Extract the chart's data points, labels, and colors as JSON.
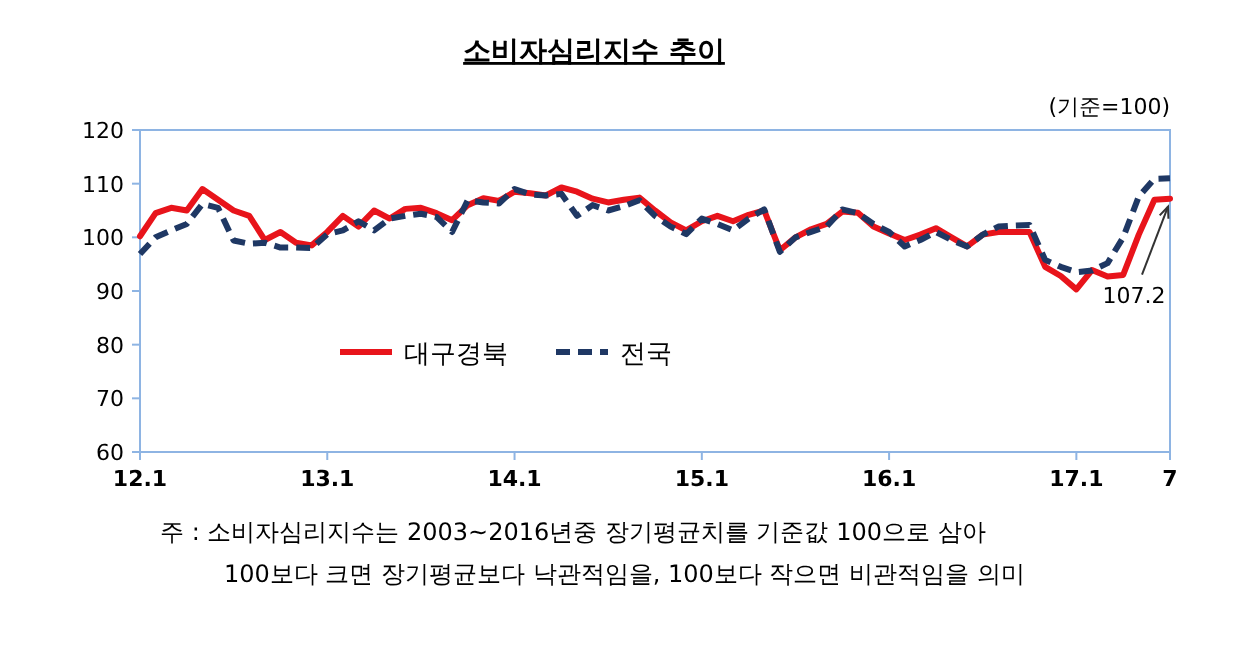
{
  "chart_data": {
    "type": "line",
    "title": "소비자심리지수 추이",
    "categories": [
      "12.1",
      null,
      null,
      null,
      null,
      null,
      null,
      null,
      null,
      null,
      null,
      null,
      "13.1",
      null,
      null,
      null,
      null,
      null,
      null,
      null,
      null,
      null,
      null,
      null,
      "14.1",
      null,
      null,
      null,
      null,
      null,
      null,
      null,
      null,
      null,
      null,
      null,
      "15.1",
      null,
      null,
      null,
      null,
      null,
      null,
      null,
      null,
      null,
      null,
      null,
      "16.1",
      null,
      null,
      null,
      null,
      null,
      null,
      null,
      null,
      null,
      null,
      null,
      "17.1",
      null,
      null,
      null,
      null,
      null,
      "7"
    ],
    "series": [
      {
        "name": "대구경북",
        "color": "#e8141b",
        "line_style": "solid",
        "values": [
          100.2,
          104.5,
          105.5,
          105,
          109,
          107,
          105,
          104,
          99.5,
          101,
          99,
          98.5,
          101,
          104,
          102,
          105,
          103.5,
          105.3,
          105.5,
          104.5,
          103.2,
          106,
          107.3,
          106.8,
          108.5,
          108.2,
          107.8,
          109.3,
          108.5,
          107.2,
          106.5,
          107,
          107.4,
          105,
          102.8,
          101.3,
          103,
          104,
          103,
          104.2,
          105,
          97.6,
          100,
          101.5,
          102.5,
          104.8,
          104.6,
          102,
          100.7,
          99.5,
          100.5,
          101.7,
          100,
          98.3,
          100.5,
          101,
          101,
          101,
          94.5,
          92.8,
          90.3,
          93.9,
          92.7,
          93,
          100.5,
          107,
          107.2
        ]
      },
      {
        "name": "전국",
        "color": "#1f3864",
        "line_style": "dashed",
        "values": [
          96.9,
          100,
          101.3,
          102.5,
          106.2,
          105.5,
          99.4,
          98.8,
          99,
          98.1,
          98.1,
          98,
          100.6,
          101.3,
          103,
          101.3,
          103.5,
          104,
          104.4,
          103.8,
          101,
          106.9,
          106.5,
          106.3,
          109,
          108,
          107.8,
          108.1,
          104,
          106,
          105,
          105.8,
          106.9,
          104,
          102,
          100.6,
          103.5,
          102.5,
          101.3,
          103.5,
          105.2,
          97.3,
          100,
          101,
          102,
          105.2,
          104.5,
          102.5,
          101,
          98.3,
          99.5,
          101,
          99.5,
          98.3,
          100.5,
          102,
          102.2,
          102.3,
          95.8,
          94.5,
          93.5,
          93.8,
          95.2,
          100,
          107.6,
          110.9,
          111
        ]
      }
    ],
    "ylim": [
      60,
      120
    ],
    "yticks": [
      60,
      70,
      80,
      90,
      100,
      110,
      120
    ],
    "grid": false,
    "legend": "bottom",
    "annotations": [
      {
        "text": "107.2",
        "x": "7",
        "y": 107.2
      },
      "(기준=100)",
      "주 : 소비자심리지수는 2003~2016년중 장기평균치를 기준값 100으로 삼아",
      "100보다 크면 장기평균보다 낙관적임을, 100보다 작으면 비관적임을 의미"
    ]
  }
}
